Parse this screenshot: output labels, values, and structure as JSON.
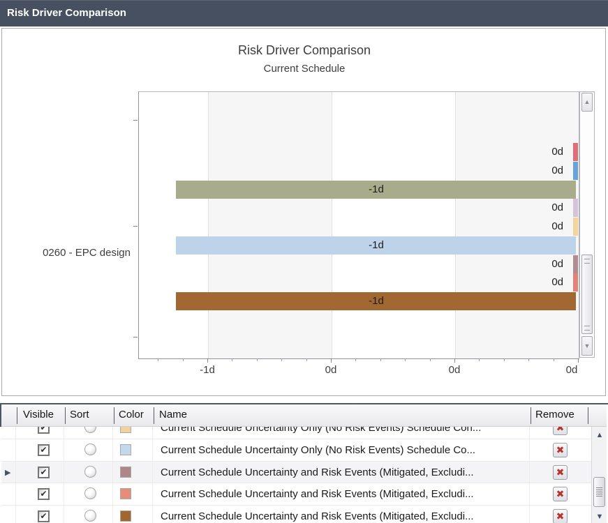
{
  "window": {
    "title": "Risk Driver Comparison"
  },
  "chart": {
    "title": "Risk Driver Comparison",
    "subtitle": "Current Schedule",
    "category_label": "0260 - EPC design",
    "x_tick_labels": [
      "-1d",
      "0d",
      "0d",
      "0d"
    ]
  },
  "chart_data": {
    "type": "bar",
    "orientation": "horizontal",
    "title": "Risk Driver Comparison",
    "subtitle": "Current Schedule",
    "categories": [
      "0260 - EPC design"
    ],
    "x_axis_tick_labels": [
      "-1d",
      "0d",
      "0d",
      "0d"
    ],
    "grid": true,
    "legend_position": "none",
    "series": [
      {
        "color": "#df6e78",
        "value_days": 0,
        "label": "0d"
      },
      {
        "color": "#6aa3d8",
        "value_days": 0,
        "label": "0d"
      },
      {
        "color": "#a9ac8b",
        "value_days": -1,
        "label": "-1d"
      },
      {
        "color": "#d5c3dd",
        "value_days": 0,
        "label": "0d"
      },
      {
        "color": "#f3d49c",
        "value_days": 0,
        "label": "0d"
      },
      {
        "color": "#bcd3e9",
        "value_days": -1,
        "label": "-1d"
      },
      {
        "color": "#b18d93",
        "value_days": 0,
        "label": "0d"
      },
      {
        "color": "#e28379",
        "value_days": 0,
        "label": "0d"
      },
      {
        "color": "#a26832",
        "value_days": -1,
        "label": "-1d"
      }
    ]
  },
  "table": {
    "headers": [
      "Visible",
      "Sort",
      "Color",
      "Name",
      "Remove"
    ],
    "rows": [
      {
        "visible": true,
        "sort_selected": false,
        "color": "#f0d2a0",
        "name": "Current Schedule Uncertainty Only (No Risk Events) Schedule Con...",
        "row_selected": false
      },
      {
        "visible": true,
        "sort_selected": false,
        "color": "#c3d8ec",
        "name": "Current Schedule Uncertainty Only (No Risk Events) Schedule Co...",
        "row_selected": false
      },
      {
        "visible": true,
        "sort_selected": false,
        "color": "#ae868a",
        "name": "Current Schedule Uncertainty and Risk Events (Mitigated, Excludi...",
        "row_selected": true
      },
      {
        "visible": true,
        "sort_selected": false,
        "color": "#e68d79",
        "name": "Current Schedule Uncertainty and Risk Events (Mitigated, Excludi...",
        "row_selected": false
      },
      {
        "visible": true,
        "sort_selected": false,
        "color": "#a2672f",
        "name": "Current Schedule Uncertainty and Risk Events (Mitigated, Excludi...",
        "row_selected": false
      }
    ]
  },
  "icons": {
    "check": "✔",
    "remove_x": "✖",
    "row_selector": "▶",
    "scroll_up": "▲",
    "scroll_down": "▼"
  }
}
